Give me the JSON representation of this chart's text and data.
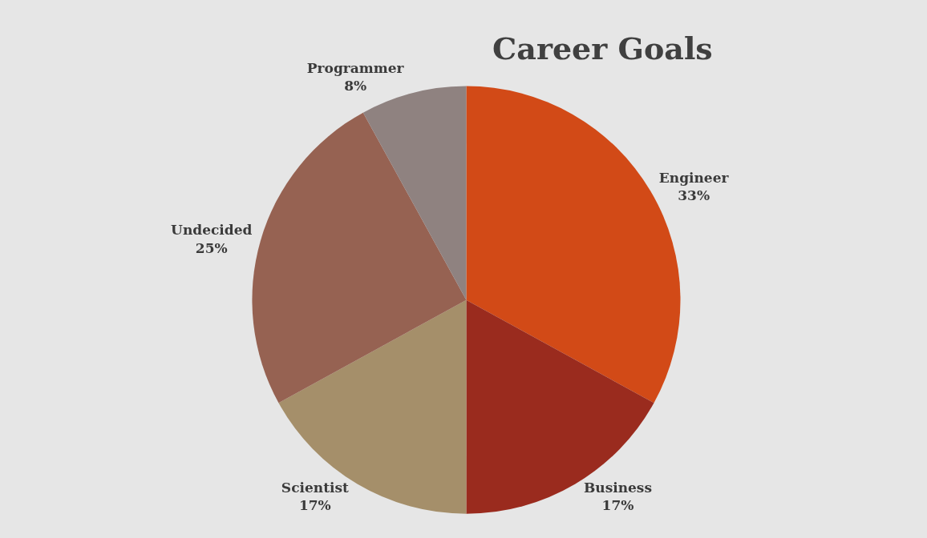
{
  "chart_data": {
    "type": "pie",
    "title": "Career Goals",
    "categories": [
      "Engineer",
      "Business",
      "Scientist",
      "Undecided",
      "Programmer"
    ],
    "values": [
      33,
      17,
      17,
      25,
      8
    ],
    "colors": [
      "#d24a17",
      "#9a2b1e",
      "#a58f6a",
      "#966252",
      "#8f8280"
    ],
    "value_labels": [
      "33%",
      "17%",
      "17%",
      "25%",
      "8%"
    ],
    "legend": false
  }
}
